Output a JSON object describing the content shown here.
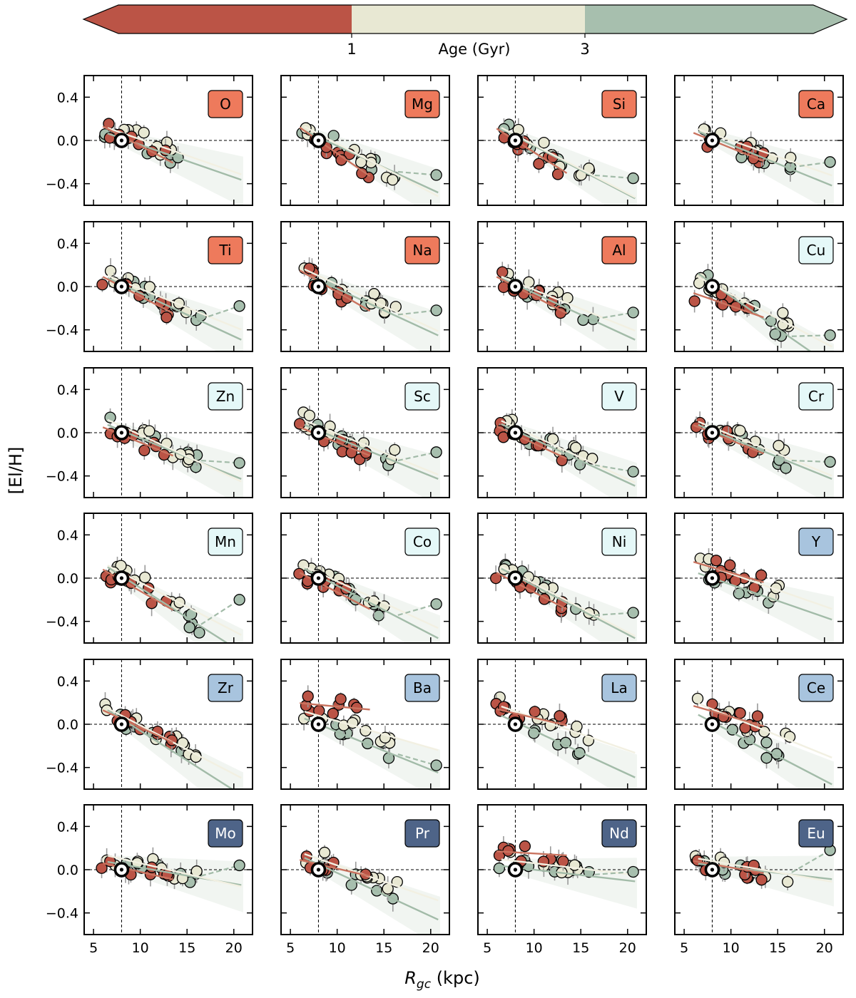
{
  "colorbar": {
    "label": "Age (Gyr)",
    "tick_labels": [
      "1",
      "3"
    ],
    "bins": [
      {
        "name": "young",
        "color": "#bb5446"
      },
      {
        "name": "intermediate",
        "color": "#e8e8d3"
      },
      {
        "name": "old",
        "color": "#a7bfae"
      }
    ]
  },
  "axes": {
    "xlabel": "R_gc (kpc)",
    "xlabel_main": "R",
    "xlabel_sub": "gc",
    "xlabel_unit": "(kpc)",
    "ylabel": "[El/H]",
    "xlim": [
      4,
      22
    ],
    "ylim": [
      -0.6,
      0.6
    ],
    "xticks": [
      5,
      10,
      15,
      20
    ],
    "xtick_labels": [
      "5",
      "10",
      "15",
      "20"
    ],
    "yticks": [
      0.4,
      0.0,
      -0.4
    ],
    "ytick_labels": [
      "0.4",
      "0.0",
      "−0.4"
    ],
    "sun_rgc": 8.0
  },
  "colors": {
    "young": "#bb5446",
    "intermediate": "#e8e8d3",
    "old": "#a7bfae",
    "family_light": "#ee7a5c",
    "family_iron": "#e5f8f8",
    "family_s": "#a8c4de",
    "family_heavy": "#4e6488"
  },
  "chart_data": {
    "type": "scatter",
    "title": "",
    "xlabel": "R_gc (kpc)",
    "ylabel": "[El/H]",
    "layout": "6 rows x 4 columns of panels sharing axes",
    "panels": [
      {
        "element": "O",
        "family": "light",
        "slopes": {
          "young": -0.045,
          "intermediate": -0.03,
          "old": -0.03
        },
        "intercepts_at_sun": {
          "young": 0.04,
          "intermediate": 0.07,
          "old": 0.02
        },
        "rmax": 15.0,
        "outer_point": null
      },
      {
        "element": "Mg",
        "family": "light",
        "slopes": {
          "young": -0.06,
          "intermediate": -0.045,
          "old": -0.04
        },
        "intercepts_at_sun": {
          "young": 0.0,
          "intermediate": 0.06,
          "old": 0.03
        },
        "rmax": 16.5,
        "outer_point": {
          "x": 20.6,
          "y": -0.32
        }
      },
      {
        "element": "Si",
        "family": "light",
        "slopes": {
          "young": -0.055,
          "intermediate": -0.045,
          "old": -0.045
        },
        "intercepts_at_sun": {
          "young": 0.0,
          "intermediate": 0.05,
          "old": 0.04
        },
        "rmax": 16.5,
        "outer_point": {
          "x": 20.6,
          "y": -0.35
        }
      },
      {
        "element": "Ca",
        "family": "light",
        "slopes": {
          "young": -0.035,
          "intermediate": -0.03,
          "old": -0.035
        },
        "intercepts_at_sun": {
          "young": 0.0,
          "intermediate": 0.06,
          "old": 0.03
        },
        "rmax": 16.5,
        "outer_point": {
          "x": 20.6,
          "y": -0.2
        }
      },
      {
        "element": "Ti",
        "family": "light",
        "slopes": {
          "young": -0.045,
          "intermediate": -0.035,
          "old": -0.04
        },
        "intercepts_at_sun": {
          "young": 0.0,
          "intermediate": 0.05,
          "old": 0.02
        },
        "rmax": 16.5,
        "outer_point": {
          "x": 20.6,
          "y": -0.18
        }
      },
      {
        "element": "Na",
        "family": "light",
        "slopes": {
          "young": -0.05,
          "intermediate": -0.04,
          "old": -0.04
        },
        "intercepts_at_sun": {
          "young": 0.05,
          "intermediate": 0.1,
          "old": 0.06
        },
        "rmax": 16.5,
        "outer_point": {
          "x": 20.6,
          "y": -0.22
        }
      },
      {
        "element": "Al",
        "family": "light",
        "slopes": {
          "young": -0.045,
          "intermediate": -0.035,
          "old": -0.04
        },
        "intercepts_at_sun": {
          "young": 0.0,
          "intermediate": 0.04,
          "old": 0.02
        },
        "rmax": 16.5,
        "outer_point": {
          "x": 20.6,
          "y": -0.24
        }
      },
      {
        "element": "Cu",
        "family": "iron",
        "slopes": {
          "young": -0.03,
          "intermediate": -0.045,
          "old": -0.06
        },
        "intercepts_at_sun": {
          "young": -0.12,
          "intermediate": 0.02,
          "old": 0.03
        },
        "rmax": 16.5,
        "outer_point": {
          "x": 20.6,
          "y": -0.45
        }
      },
      {
        "element": "Zn",
        "family": "iron",
        "slopes": {
          "young": -0.035,
          "intermediate": -0.04,
          "old": -0.035
        },
        "intercepts_at_sun": {
          "young": -0.02,
          "intermediate": 0.06,
          "old": 0.02
        },
        "rmax": 16.5,
        "outer_point": {
          "x": 20.6,
          "y": -0.28
        }
      },
      {
        "element": "Sc",
        "family": "iron",
        "slopes": {
          "young": -0.035,
          "intermediate": -0.035,
          "old": -0.035
        },
        "intercepts_at_sun": {
          "young": -0.02,
          "intermediate": 0.06,
          "old": 0.02
        },
        "rmax": 16.5,
        "outer_point": {
          "x": 20.6,
          "y": -0.18
        }
      },
      {
        "element": "V",
        "family": "iron",
        "slopes": {
          "young": -0.04,
          "intermediate": -0.04,
          "old": -0.04
        },
        "intercepts_at_sun": {
          "young": -0.02,
          "intermediate": 0.05,
          "old": 0.02
        },
        "rmax": 16.5,
        "outer_point": {
          "x": 20.6,
          "y": -0.36
        }
      },
      {
        "element": "Cr",
        "family": "iron",
        "slopes": {
          "young": -0.035,
          "intermediate": -0.035,
          "old": -0.035
        },
        "intercepts_at_sun": {
          "young": 0.0,
          "intermediate": 0.05,
          "old": 0.02
        },
        "rmax": 16.5,
        "outer_point": {
          "x": 20.6,
          "y": -0.27
        }
      },
      {
        "element": "Mn",
        "family": "iron",
        "slopes": {
          "young": -0.05,
          "intermediate": -0.045,
          "old": -0.055
        },
        "intercepts_at_sun": {
          "young": -0.02,
          "intermediate": 0.05,
          "old": 0.02
        },
        "rmax": 16.5,
        "outer_point": {
          "x": 20.6,
          "y": -0.2
        }
      },
      {
        "element": "Co",
        "family": "iron",
        "slopes": {
          "young": -0.045,
          "intermediate": -0.04,
          "old": -0.045
        },
        "intercepts_at_sun": {
          "young": -0.04,
          "intermediate": 0.05,
          "old": 0.02
        },
        "rmax": 16.5,
        "outer_point": {
          "x": 20.6,
          "y": -0.24
        }
      },
      {
        "element": "Ni",
        "family": "iron",
        "slopes": {
          "young": -0.045,
          "intermediate": -0.045,
          "old": -0.045
        },
        "intercepts_at_sun": {
          "young": -0.04,
          "intermediate": 0.04,
          "old": 0.02
        },
        "rmax": 16.5,
        "outer_point": {
          "x": 20.6,
          "y": -0.32
        }
      },
      {
        "element": "Y",
        "family": "s",
        "slopes": {
          "young": -0.025,
          "intermediate": -0.03,
          "old": -0.03
        },
        "intercepts_at_sun": {
          "young": 0.1,
          "intermediate": 0.1,
          "old": 0.0
        },
        "rmax": 16.5,
        "outer_point": null
      },
      {
        "element": "Zr",
        "family": "s",
        "slopes": {
          "young": -0.04,
          "intermediate": -0.045,
          "old": -0.055
        },
        "intercepts_at_sun": {
          "young": 0.05,
          "intermediate": 0.08,
          "old": 0.05
        },
        "rmax": 16.5,
        "outer_point": null
      },
      {
        "element": "Ba",
        "family": "s",
        "slopes": {
          "young": -0.008,
          "intermediate": -0.025,
          "old": -0.035
        },
        "intercepts_at_sun": {
          "young": 0.18,
          "intermediate": 0.08,
          "old": 0.0
        },
        "rmax": 16.5,
        "outer_point": {
          "x": 20.6,
          "y": -0.38
        }
      },
      {
        "element": "La",
        "family": "s",
        "slopes": {
          "young": -0.02,
          "intermediate": -0.03,
          "old": -0.04
        },
        "intercepts_at_sun": {
          "young": 0.1,
          "intermediate": 0.12,
          "old": 0.02
        },
        "rmax": 16.5,
        "outer_point": null
      },
      {
        "element": "Ce",
        "family": "s",
        "slopes": {
          "young": -0.025,
          "intermediate": -0.035,
          "old": -0.045
        },
        "intercepts_at_sun": {
          "young": 0.12,
          "intermediate": 0.14,
          "old": 0.02
        },
        "rmax": 16.5,
        "outer_point": null
      },
      {
        "element": "Mo",
        "family": "heavy",
        "slopes": {
          "young": -0.02,
          "intermediate": -0.02,
          "old": -0.015
        },
        "intercepts_at_sun": {
          "young": 0.02,
          "intermediate": 0.1,
          "old": 0.05
        },
        "rmax": 16.5,
        "outer_point": {
          "x": 20.6,
          "y": 0.04
        }
      },
      {
        "element": "Pr",
        "family": "heavy",
        "slopes": {
          "young": -0.02,
          "intermediate": -0.03,
          "old": -0.04
        },
        "intercepts_at_sun": {
          "young": 0.05,
          "intermediate": 0.1,
          "old": 0.05
        },
        "rmax": 16.5,
        "outer_point": null
      },
      {
        "element": "Nd",
        "family": "heavy",
        "slopes": {
          "young": -0.005,
          "intermediate": -0.01,
          "old": -0.01
        },
        "intercepts_at_sun": {
          "young": 0.16,
          "intermediate": 0.08,
          "old": 0.02
        },
        "rmax": 16.5,
        "outer_point": {
          "x": 20.6,
          "y": -0.02
        }
      },
      {
        "element": "Eu",
        "family": "heavy",
        "slopes": {
          "young": -0.015,
          "intermediate": -0.015,
          "old": -0.01
        },
        "intercepts_at_sun": {
          "young": 0.05,
          "intermediate": 0.08,
          "old": 0.04
        },
        "rmax": 16.5,
        "outer_point": {
          "x": 20.6,
          "y": 0.18
        }
      }
    ]
  }
}
